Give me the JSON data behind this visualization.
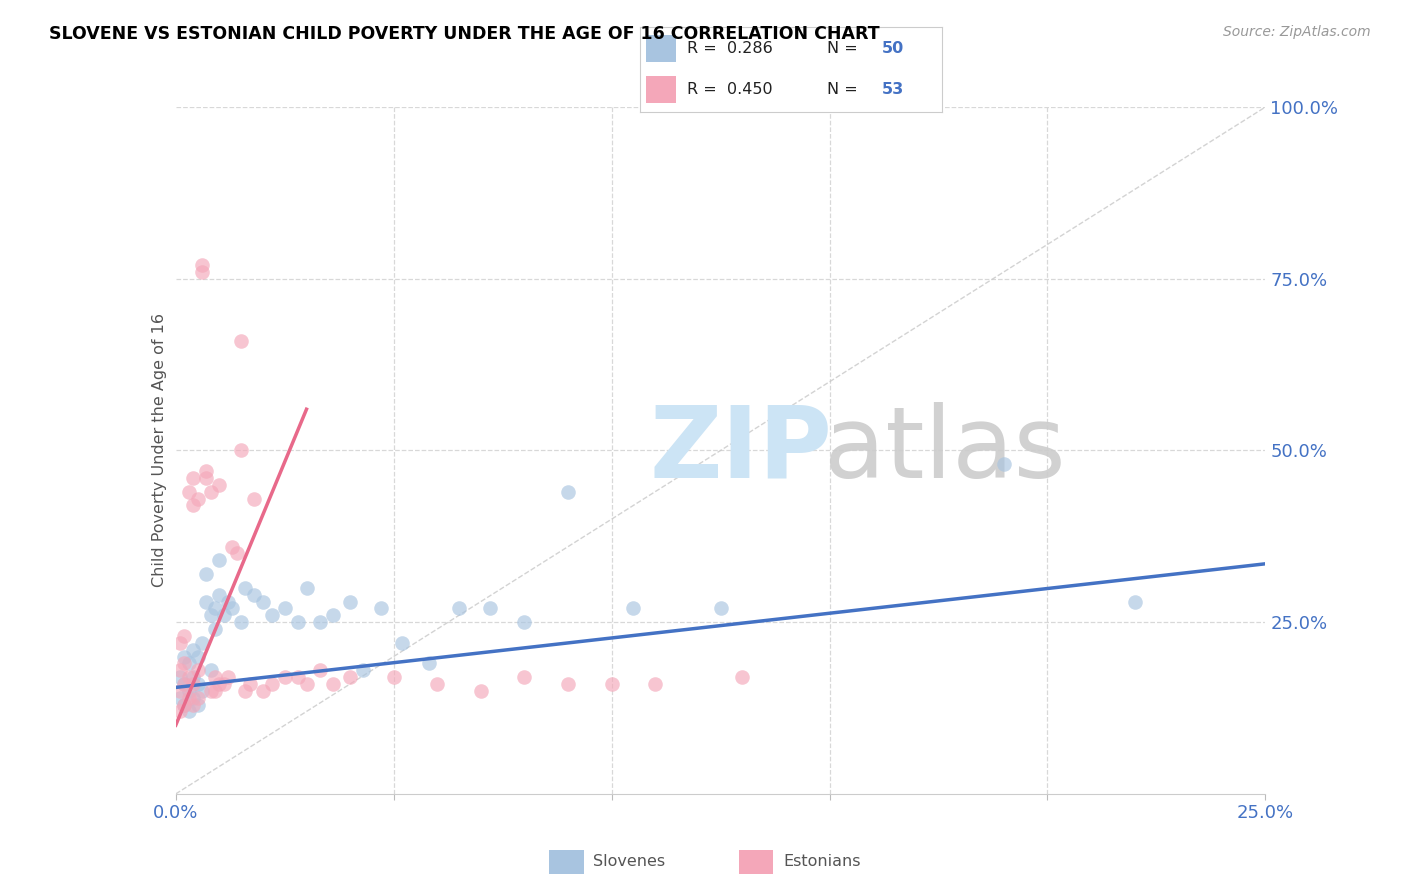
{
  "title": "SLOVENE VS ESTONIAN CHILD POVERTY UNDER THE AGE OF 16 CORRELATION CHART",
  "source": "Source: ZipAtlas.com",
  "ylabel": "Child Poverty Under the Age of 16",
  "xlim": [
    0.0,
    0.25
  ],
  "ylim": [
    0.0,
    1.0
  ],
  "slovene_color": "#a8c4e0",
  "estonian_color": "#f4a7b9",
  "slovene_line_color": "#4472c4",
  "estonian_line_color": "#e8698a",
  "diagonal_color": "#c8c8c8",
  "grid_color": "#d8d8d8",
  "text_color": "#4472c4",
  "title_color": "#000000",
  "legend_R_slovene": "R = 0.286",
  "legend_N_slovene": "N = 50",
  "legend_R_estonian": "R = 0.450",
  "legend_N_estonian": "N = 53",
  "slovene_x": [
    0.001,
    0.001,
    0.002,
    0.002,
    0.002,
    0.003,
    0.003,
    0.003,
    0.004,
    0.004,
    0.004,
    0.005,
    0.005,
    0.005,
    0.006,
    0.006,
    0.007,
    0.007,
    0.008,
    0.008,
    0.009,
    0.009,
    0.01,
    0.01,
    0.011,
    0.012,
    0.013,
    0.015,
    0.016,
    0.018,
    0.02,
    0.022,
    0.025,
    0.028,
    0.03,
    0.033,
    0.036,
    0.04,
    0.043,
    0.047,
    0.052,
    0.058,
    0.065,
    0.072,
    0.08,
    0.09,
    0.105,
    0.125,
    0.19,
    0.22
  ],
  "slovene_y": [
    0.14,
    0.17,
    0.13,
    0.16,
    0.2,
    0.12,
    0.15,
    0.19,
    0.14,
    0.17,
    0.21,
    0.13,
    0.16,
    0.2,
    0.15,
    0.22,
    0.28,
    0.32,
    0.18,
    0.26,
    0.27,
    0.24,
    0.29,
    0.34,
    0.26,
    0.28,
    0.27,
    0.25,
    0.3,
    0.29,
    0.28,
    0.26,
    0.27,
    0.25,
    0.3,
    0.25,
    0.26,
    0.28,
    0.18,
    0.27,
    0.22,
    0.19,
    0.27,
    0.27,
    0.25,
    0.44,
    0.27,
    0.27,
    0.48,
    0.28
  ],
  "estonian_x": [
    0.001,
    0.001,
    0.001,
    0.001,
    0.002,
    0.002,
    0.002,
    0.002,
    0.003,
    0.003,
    0.003,
    0.004,
    0.004,
    0.004,
    0.004,
    0.005,
    0.005,
    0.005,
    0.006,
    0.006,
    0.007,
    0.007,
    0.008,
    0.008,
    0.009,
    0.009,
    0.01,
    0.01,
    0.011,
    0.012,
    0.013,
    0.014,
    0.015,
    0.016,
    0.017,
    0.018,
    0.02,
    0.022,
    0.025,
    0.028,
    0.03,
    0.033,
    0.036,
    0.04,
    0.05,
    0.06,
    0.07,
    0.08,
    0.09,
    0.1,
    0.11,
    0.13,
    0.015
  ],
  "estonian_y": [
    0.12,
    0.15,
    0.18,
    0.22,
    0.13,
    0.16,
    0.19,
    0.23,
    0.14,
    0.17,
    0.44,
    0.13,
    0.16,
    0.46,
    0.42,
    0.14,
    0.18,
    0.43,
    0.76,
    0.77,
    0.46,
    0.47,
    0.15,
    0.44,
    0.15,
    0.17,
    0.16,
    0.45,
    0.16,
    0.17,
    0.36,
    0.35,
    0.5,
    0.15,
    0.16,
    0.43,
    0.15,
    0.16,
    0.17,
    0.17,
    0.16,
    0.18,
    0.16,
    0.17,
    0.17,
    0.16,
    0.15,
    0.17,
    0.16,
    0.16,
    0.16,
    0.17,
    0.66
  ],
  "slovene_line_x": [
    0.0,
    0.25
  ],
  "slovene_line_y": [
    0.155,
    0.335
  ],
  "estonian_line_x": [
    0.0,
    0.03
  ],
  "estonian_line_y": [
    0.1,
    0.56
  ]
}
